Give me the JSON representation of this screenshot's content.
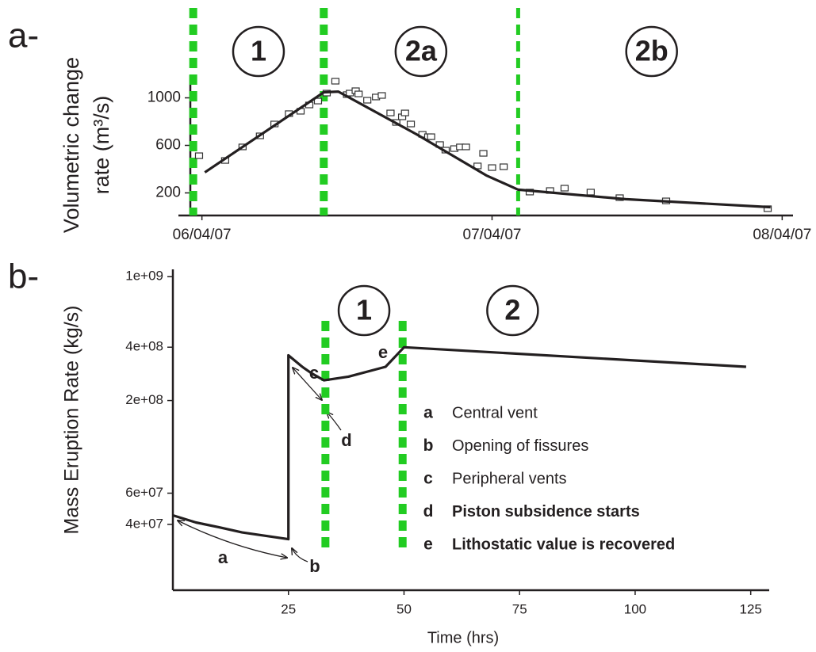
{
  "chart_data": [
    {
      "panel": "a-",
      "type": "scatter",
      "ylabel": [
        "Volumetric change",
        "rate  (m³/s)"
      ],
      "xlim": [
        5.96,
        8.01
      ],
      "xticks": [
        {
          "value": 6,
          "label": "06/04/07"
        },
        {
          "value": 7,
          "label": "07/04/07"
        },
        {
          "value": 8,
          "label": "08/04/07"
        }
      ],
      "ylim": [
        10,
        1190
      ],
      "yticks": [
        200,
        600,
        1000
      ],
      "series": [
        {
          "type": "scatter",
          "color": "#333333",
          "x": [
            5.99,
            6.08,
            6.14,
            6.2,
            6.25,
            6.3,
            6.34,
            6.37,
            6.4,
            6.43,
            6.46,
            6.5,
            6.51,
            6.53,
            6.54,
            6.57,
            6.6,
            6.62,
            6.65,
            6.67,
            6.69,
            6.7,
            6.72,
            6.76,
            6.78,
            6.79,
            6.82,
            6.84,
            6.87,
            6.89,
            6.91,
            6.95,
            6.97,
            7.0,
            7.04,
            7.13,
            7.2,
            7.25,
            7.34,
            7.44,
            7.6,
            7.95
          ],
          "values": [
            513,
            473,
            587,
            680,
            780,
            867,
            887,
            940,
            973,
            1040,
            1140,
            1027,
            1040,
            1060,
            1033,
            980,
            1007,
            1020,
            873,
            793,
            840,
            873,
            780,
            693,
            673,
            673,
            607,
            560,
            573,
            587,
            587,
            427,
            533,
            413,
            420,
            207,
            220,
            240,
            207,
            160,
            133,
            67
          ]
        },
        {
          "type": "line",
          "color": "#231f20",
          "x": [
            6.01,
            6.42,
            6.47,
            6.74,
            6.98,
            7.09,
            7.46,
            7.96
          ],
          "values": [
            373,
            1047,
            1053,
            693,
            347,
            227,
            147,
            80
          ]
        }
      ],
      "phase_boundaries": [
        5.97,
        6.42,
        7.09
      ],
      "phases": [
        "1",
        "2a",
        "2b"
      ],
      "boundary_color": "#22cc22"
    },
    {
      "panel": "b-",
      "type": "line",
      "log_y": true,
      "ylabel": "Mass Eruption Rate (kg/s)",
      "xlabel": "Time (hrs)",
      "xlim": [
        0,
        129
      ],
      "xticks": [
        25,
        50,
        75,
        100,
        125
      ],
      "ylim": [
        17000000,
        1100000000
      ],
      "yticks": [
        {
          "value": 1000000000,
          "label": "1e+09"
        },
        {
          "value": 400000000,
          "label": "4e+08"
        },
        {
          "value": 200000000,
          "label": "2e+08"
        },
        {
          "value": 60000000,
          "label": "6e+07"
        },
        {
          "value": 40000000,
          "label": "4e+07"
        }
      ],
      "series": [
        {
          "type": "line",
          "color": "#231f20",
          "x": [
            0,
            5,
            10,
            15,
            20,
            25,
            25,
            28,
            30,
            32.7,
            38,
            46,
            50,
            124
          ],
          "values": [
            45000000,
            41000000,
            38500000,
            36000000,
            34500000,
            33000000,
            360000000,
            310000000,
            285000000,
            260000000,
            273000000,
            310000000,
            400000000,
            310000000
          ]
        }
      ],
      "phase_boundaries": [
        33,
        49.7
      ],
      "phases": [
        "1",
        "2"
      ],
      "boundary_color": "#22cc22",
      "callouts": [
        "a",
        "b",
        "c",
        "d",
        "e"
      ],
      "notes": [
        {
          "key": "a",
          "text": "Central vent",
          "bold": false
        },
        {
          "key": "b",
          "text": "Opening of fissures",
          "bold": false
        },
        {
          "key": "c",
          "text": "Peripheral vents",
          "bold": false
        },
        {
          "key": "d",
          "text": "Piston subsidence starts",
          "bold": true
        },
        {
          "key": "e",
          "text": "Lithostatic value is recovered",
          "bold": true
        }
      ]
    }
  ]
}
